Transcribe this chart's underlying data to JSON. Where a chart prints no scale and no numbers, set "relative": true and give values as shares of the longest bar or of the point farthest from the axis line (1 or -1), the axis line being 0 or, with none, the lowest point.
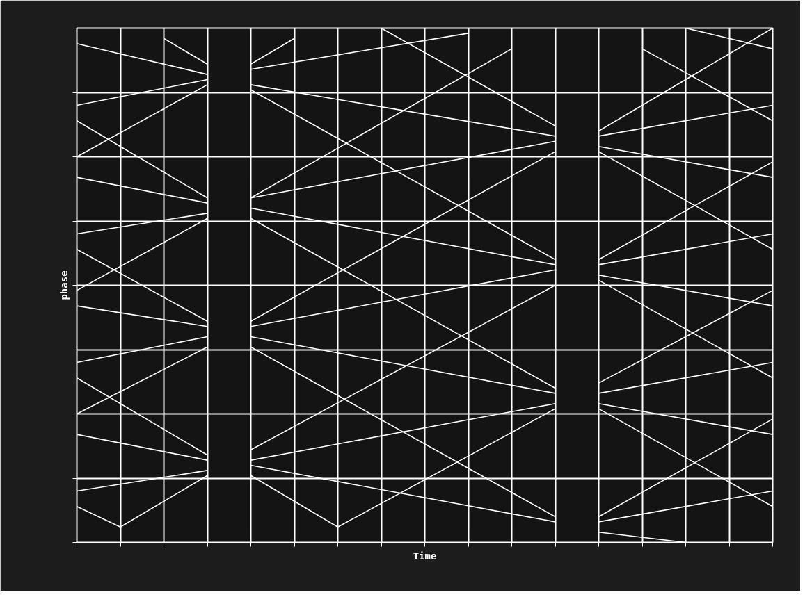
{
  "chart_data": {
    "type": "line",
    "relative": true,
    "xlabel": "Time",
    "ylabel": "phase",
    "color": "#ffffff",
    "grid": true,
    "categories": [
      null,
      null,
      null,
      null,
      null,
      null,
      null,
      null,
      null,
      null,
      null,
      null,
      null,
      null,
      null,
      null,
      null
    ],
    "series": [
      {
        "values": [
          0.97,
          null,
          null,
          0.91,
          null,
          null,
          null,
          null,
          null,
          null,
          null,
          null,
          null,
          null,
          null,
          null,
          null
        ]
      },
      {
        "values": [
          0.85,
          null,
          null,
          0.9,
          null,
          null,
          null,
          null,
          null,
          null,
          null,
          null,
          null,
          null,
          null,
          null,
          null
        ]
      },
      {
        "values": [
          null,
          null,
          0.98,
          0.93,
          null,
          null,
          null,
          null,
          null,
          null,
          null,
          null,
          null,
          null,
          null,
          null,
          null
        ]
      },
      {
        "values": [
          0.75,
          null,
          null,
          0.89,
          null,
          null,
          null,
          null,
          null,
          null,
          null,
          null,
          null,
          null,
          null,
          null,
          null
        ]
      },
      {
        "values": [
          0.82,
          null,
          null,
          0.67,
          null,
          null,
          null,
          null,
          null,
          null,
          null,
          null,
          null,
          null,
          null,
          null,
          null
        ]
      },
      {
        "values": [
          0.71,
          null,
          null,
          0.66,
          null,
          null,
          null,
          null,
          null,
          null,
          null,
          null,
          null,
          null,
          null,
          null,
          null
        ]
      },
      {
        "values": [
          0.6,
          null,
          null,
          0.64,
          null,
          null,
          null,
          null,
          null,
          null,
          null,
          null,
          null,
          null,
          null,
          null,
          null
        ]
      },
      {
        "values": [
          0.49,
          null,
          null,
          0.63,
          null,
          null,
          null,
          null,
          null,
          null,
          null,
          null,
          null,
          null,
          null,
          null,
          null
        ]
      },
      {
        "values": [
          0.57,
          null,
          null,
          0.43,
          null,
          null,
          null,
          null,
          null,
          null,
          null,
          null,
          null,
          null,
          null,
          null,
          null
        ]
      },
      {
        "values": [
          0.46,
          null,
          null,
          0.42,
          null,
          null,
          null,
          null,
          null,
          null,
          null,
          null,
          null,
          null,
          null,
          null,
          null
        ]
      },
      {
        "values": [
          0.35,
          null,
          null,
          0.4,
          null,
          null,
          null,
          null,
          null,
          null,
          null,
          null,
          null,
          null,
          null,
          null,
          null
        ]
      },
      {
        "values": [
          0.25,
          null,
          null,
          0.38,
          null,
          null,
          null,
          null,
          null,
          null,
          null,
          null,
          null,
          null,
          null,
          null,
          null
        ]
      },
      {
        "values": [
          0.32,
          null,
          null,
          0.17,
          null,
          null,
          null,
          null,
          null,
          null,
          null,
          null,
          null,
          null,
          null,
          null,
          null
        ]
      },
      {
        "values": [
          0.21,
          null,
          null,
          0.16,
          null,
          null,
          null,
          null,
          null,
          null,
          null,
          null,
          null,
          null,
          null,
          null,
          null
        ]
      },
      {
        "values": [
          0.1,
          null,
          null,
          0.14,
          null,
          null,
          null,
          null,
          null,
          null,
          null,
          null,
          null,
          null,
          null,
          null,
          null
        ]
      },
      {
        "values": [
          0.07,
          0.03,
          null,
          0.13,
          null,
          null,
          null,
          null,
          null,
          null,
          null,
          null,
          null,
          null,
          null,
          null,
          null
        ]
      },
      {
        "values": [
          null,
          null,
          null,
          null,
          0.89,
          null,
          null,
          null,
          null,
          null,
          null,
          0.79,
          null,
          null,
          null,
          null,
          null
        ]
      },
      {
        "values": [
          null,
          null,
          null,
          null,
          0.88,
          null,
          null,
          null,
          null,
          null,
          null,
          0.55,
          null,
          null,
          null,
          null,
          null
        ]
      },
      {
        "values": [
          null,
          null,
          null,
          null,
          0.92,
          null,
          null,
          null,
          null,
          0.99,
          null,
          null,
          null,
          null,
          null,
          null,
          null
        ]
      },
      {
        "values": [
          null,
          null,
          null,
          null,
          0.93,
          0.98,
          null,
          null,
          null,
          null,
          null,
          null,
          null,
          null,
          null,
          null,
          null
        ]
      },
      {
        "values": [
          null,
          null,
          null,
          null,
          null,
          null,
          null,
          1.0,
          null,
          null,
          null,
          0.81,
          null,
          null,
          null,
          null,
          null
        ]
      },
      {
        "values": [
          null,
          null,
          null,
          null,
          0.67,
          null,
          null,
          null,
          null,
          null,
          0.96,
          null,
          null,
          null,
          null,
          null,
          null
        ]
      },
      {
        "values": [
          null,
          null,
          null,
          null,
          0.67,
          null,
          null,
          null,
          null,
          null,
          null,
          0.78,
          null,
          null,
          null,
          null,
          null
        ]
      },
      {
        "values": [
          null,
          null,
          null,
          null,
          0.65,
          null,
          null,
          null,
          null,
          null,
          null,
          0.54,
          null,
          null,
          null,
          null,
          null
        ]
      },
      {
        "values": [
          null,
          null,
          null,
          null,
          0.63,
          null,
          null,
          null,
          null,
          null,
          null,
          0.3,
          null,
          null,
          null,
          null,
          null
        ]
      },
      {
        "values": [
          null,
          null,
          null,
          null,
          0.43,
          null,
          null,
          null,
          null,
          null,
          null,
          0.76,
          null,
          null,
          null,
          null,
          null
        ]
      },
      {
        "values": [
          null,
          null,
          null,
          null,
          0.42,
          null,
          null,
          null,
          null,
          null,
          null,
          0.53,
          null,
          null,
          null,
          null,
          null
        ]
      },
      {
        "values": [
          null,
          null,
          null,
          null,
          0.4,
          null,
          null,
          null,
          null,
          null,
          null,
          0.29,
          null,
          null,
          null,
          null,
          null
        ]
      },
      {
        "values": [
          null,
          null,
          null,
          null,
          0.38,
          null,
          null,
          null,
          null,
          null,
          null,
          0.05,
          null,
          null,
          null,
          null,
          null
        ]
      },
      {
        "values": [
          null,
          null,
          null,
          null,
          0.18,
          null,
          null,
          null,
          null,
          null,
          null,
          0.5,
          null,
          null,
          null,
          null,
          null
        ]
      },
      {
        "values": [
          null,
          null,
          null,
          null,
          0.16,
          null,
          null,
          null,
          null,
          null,
          null,
          0.27,
          null,
          null,
          null,
          null,
          null
        ]
      },
      {
        "values": [
          null,
          null,
          null,
          null,
          0.15,
          null,
          null,
          null,
          null,
          null,
          null,
          0.04,
          null,
          null,
          null,
          null,
          null
        ]
      },
      {
        "values": [
          null,
          null,
          null,
          null,
          0.13,
          null,
          0.03,
          null,
          null,
          null,
          null,
          0.26,
          null,
          null,
          null,
          null,
          null
        ]
      },
      {
        "values": [
          null,
          null,
          null,
          null,
          null,
          null,
          null,
          null,
          null,
          null,
          null,
          null,
          0.8,
          null,
          null,
          null,
          1.0
        ]
      },
      {
        "values": [
          null,
          null,
          null,
          null,
          null,
          null,
          null,
          null,
          null,
          null,
          null,
          null,
          0.79,
          null,
          null,
          null,
          0.85
        ]
      },
      {
        "values": [
          null,
          null,
          null,
          null,
          null,
          null,
          null,
          null,
          null,
          null,
          null,
          null,
          0.77,
          null,
          null,
          null,
          0.71
        ]
      },
      {
        "values": [
          null,
          null,
          null,
          null,
          null,
          null,
          null,
          null,
          null,
          null,
          null,
          null,
          0.76,
          null,
          null,
          null,
          0.57
        ]
      },
      {
        "values": [
          null,
          null,
          null,
          null,
          null,
          null,
          null,
          null,
          null,
          null,
          null,
          null,
          null,
          0.96,
          null,
          null,
          0.82
        ]
      },
      {
        "values": [
          null,
          null,
          null,
          null,
          null,
          null,
          null,
          null,
          null,
          null,
          null,
          null,
          null,
          null,
          1.0,
          null,
          0.96
        ]
      },
      {
        "values": [
          null,
          null,
          null,
          null,
          null,
          null,
          null,
          null,
          null,
          null,
          null,
          null,
          0.55,
          null,
          null,
          null,
          0.74
        ]
      },
      {
        "values": [
          null,
          null,
          null,
          null,
          null,
          null,
          null,
          null,
          null,
          null,
          null,
          null,
          0.54,
          null,
          null,
          null,
          0.6
        ]
      },
      {
        "values": [
          null,
          null,
          null,
          null,
          null,
          null,
          null,
          null,
          null,
          null,
          null,
          null,
          0.52,
          null,
          null,
          null,
          0.46
        ]
      },
      {
        "values": [
          null,
          null,
          null,
          null,
          null,
          null,
          null,
          null,
          null,
          null,
          null,
          null,
          0.51,
          null,
          null,
          null,
          0.32
        ]
      },
      {
        "values": [
          null,
          null,
          null,
          null,
          null,
          null,
          null,
          null,
          null,
          null,
          null,
          null,
          0.31,
          null,
          null,
          null,
          0.49
        ]
      },
      {
        "values": [
          null,
          null,
          null,
          null,
          null,
          null,
          null,
          null,
          null,
          null,
          null,
          null,
          0.29,
          null,
          null,
          null,
          0.35
        ]
      },
      {
        "values": [
          null,
          null,
          null,
          null,
          null,
          null,
          null,
          null,
          null,
          null,
          null,
          null,
          0.27,
          null,
          null,
          null,
          0.21
        ]
      },
      {
        "values": [
          null,
          null,
          null,
          null,
          null,
          null,
          null,
          null,
          null,
          null,
          null,
          null,
          0.26,
          null,
          null,
          null,
          0.07
        ]
      },
      {
        "values": [
          null,
          null,
          null,
          null,
          null,
          null,
          null,
          null,
          null,
          null,
          null,
          null,
          0.05,
          null,
          null,
          null,
          0.24
        ]
      },
      {
        "values": [
          null,
          null,
          null,
          null,
          null,
          null,
          null,
          null,
          null,
          null,
          null,
          null,
          0.04,
          null,
          null,
          null,
          0.1
        ]
      },
      {
        "values": [
          null,
          null,
          null,
          null,
          null,
          null,
          null,
          null,
          null,
          null,
          null,
          null,
          0.02,
          null,
          0.0,
          null,
          null
        ]
      }
    ]
  }
}
